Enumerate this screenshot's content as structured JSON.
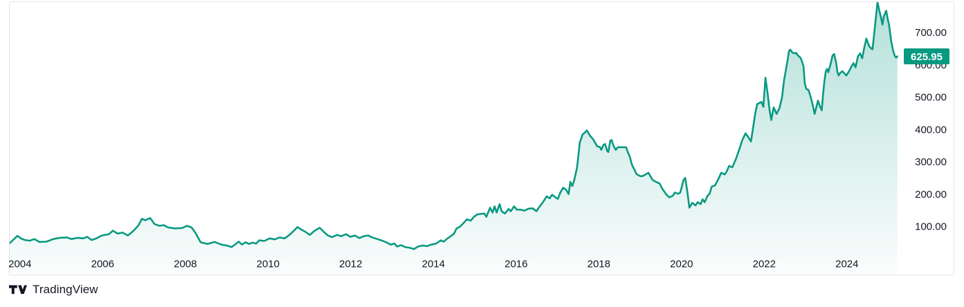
{
  "attribution": {
    "brand": "TradingView"
  },
  "chart_data": {
    "type": "area",
    "title": "",
    "xlabel": "",
    "ylabel": "",
    "grid": false,
    "legend": false,
    "last_price": 625.95,
    "last_price_label": "625.95",
    "x_axis": {
      "tick_labels": [
        "2004",
        "2006",
        "2008",
        "2010",
        "2012",
        "2014",
        "2016",
        "2018",
        "2020",
        "2022",
        "2024"
      ],
      "tick_years": [
        2004,
        2006,
        2008,
        2010,
        2012,
        2014,
        2016,
        2018,
        2020,
        2022,
        2024
      ],
      "range_years": [
        2003.75,
        2025.35
      ]
    },
    "y_axis": {
      "tick_labels": [
        "100.00",
        "200.00",
        "300.00",
        "400.00",
        "500.00",
        "600.00",
        "700.00"
      ],
      "tick_values": [
        100,
        200,
        300,
        400,
        500,
        600,
        700
      ],
      "range": [
        25,
        810
      ]
    },
    "colors": {
      "line": "#089981",
      "area_top": "rgba(8,153,129,0.30)",
      "area_bottom": "rgba(8,153,129,0.02)",
      "badge_bg": "#089981",
      "badge_text": "#ffffff",
      "axis_text": "#131722",
      "frame": "#e0e3eb",
      "background": "#ffffff",
      "logo": "#131722"
    },
    "series": [
      {
        "name": "price",
        "points": [
          [
            2003.75,
            48
          ],
          [
            2003.85,
            60
          ],
          [
            2003.94,
            71
          ],
          [
            2004.04,
            62
          ],
          [
            2004.12,
            58
          ],
          [
            2004.24,
            56
          ],
          [
            2004.35,
            61
          ],
          [
            2004.47,
            52
          ],
          [
            2004.64,
            53
          ],
          [
            2004.81,
            61
          ],
          [
            2004.97,
            65
          ],
          [
            2005.14,
            66
          ],
          [
            2005.24,
            61
          ],
          [
            2005.41,
            65
          ],
          [
            2005.53,
            63
          ],
          [
            2005.63,
            68
          ],
          [
            2005.73,
            58
          ],
          [
            2005.83,
            62
          ],
          [
            2005.98,
            72
          ],
          [
            2006.15,
            76
          ],
          [
            2006.25,
            87
          ],
          [
            2006.36,
            78
          ],
          [
            2006.48,
            81
          ],
          [
            2006.61,
            72
          ],
          [
            2006.75,
            87
          ],
          [
            2006.87,
            104
          ],
          [
            2006.95,
            124
          ],
          [
            2007.03,
            119
          ],
          [
            2007.15,
            126
          ],
          [
            2007.25,
            108
          ],
          [
            2007.37,
            102
          ],
          [
            2007.48,
            104
          ],
          [
            2007.58,
            97
          ],
          [
            2007.74,
            94
          ],
          [
            2007.92,
            95
          ],
          [
            2008.04,
            102
          ],
          [
            2008.15,
            97
          ],
          [
            2008.25,
            79
          ],
          [
            2008.37,
            51
          ],
          [
            2008.54,
            46
          ],
          [
            2008.71,
            52
          ],
          [
            2008.87,
            44
          ],
          [
            2009.04,
            40
          ],
          [
            2009.12,
            36
          ],
          [
            2009.29,
            53
          ],
          [
            2009.37,
            44
          ],
          [
            2009.46,
            51
          ],
          [
            2009.54,
            46
          ],
          [
            2009.62,
            50
          ],
          [
            2009.71,
            47
          ],
          [
            2009.79,
            57
          ],
          [
            2009.91,
            55
          ],
          [
            2010.04,
            63
          ],
          [
            2010.16,
            60
          ],
          [
            2010.28,
            66
          ],
          [
            2010.4,
            63
          ],
          [
            2010.51,
            73
          ],
          [
            2010.63,
            87
          ],
          [
            2010.71,
            98
          ],
          [
            2010.81,
            90
          ],
          [
            2010.91,
            83
          ],
          [
            2011.01,
            74
          ],
          [
            2011.13,
            87
          ],
          [
            2011.25,
            96
          ],
          [
            2011.35,
            83
          ],
          [
            2011.45,
            72
          ],
          [
            2011.55,
            67
          ],
          [
            2011.67,
            74
          ],
          [
            2011.77,
            70
          ],
          [
            2011.89,
            76
          ],
          [
            2011.99,
            68
          ],
          [
            2012.1,
            72
          ],
          [
            2012.21,
            64
          ],
          [
            2012.32,
            70
          ],
          [
            2012.42,
            72
          ],
          [
            2012.52,
            66
          ],
          [
            2012.64,
            61
          ],
          [
            2012.74,
            57
          ],
          [
            2012.86,
            51
          ],
          [
            2012.96,
            44
          ],
          [
            2013.06,
            47
          ],
          [
            2013.12,
            38
          ],
          [
            2013.22,
            42
          ],
          [
            2013.32,
            36
          ],
          [
            2013.43,
            34
          ],
          [
            2013.53,
            30
          ],
          [
            2013.63,
            38
          ],
          [
            2013.73,
            41
          ],
          [
            2013.85,
            39
          ],
          [
            2013.95,
            44
          ],
          [
            2014.06,
            47
          ],
          [
            2014.18,
            57
          ],
          [
            2014.25,
            53
          ],
          [
            2014.33,
            62
          ],
          [
            2014.41,
            69
          ],
          [
            2014.5,
            78
          ],
          [
            2014.56,
            94
          ],
          [
            2014.65,
            100
          ],
          [
            2014.73,
            111
          ],
          [
            2014.81,
            122
          ],
          [
            2014.9,
            118
          ],
          [
            2014.98,
            130
          ],
          [
            2015.06,
            137
          ],
          [
            2015.15,
            139
          ],
          [
            2015.23,
            140
          ],
          [
            2015.28,
            130
          ],
          [
            2015.37,
            158
          ],
          [
            2015.43,
            143
          ],
          [
            2015.48,
            162
          ],
          [
            2015.53,
            143
          ],
          [
            2015.6,
            169
          ],
          [
            2015.65,
            147
          ],
          [
            2015.73,
            140
          ],
          [
            2015.82,
            154
          ],
          [
            2015.87,
            147
          ],
          [
            2015.95,
            162
          ],
          [
            2016.02,
            152
          ],
          [
            2016.1,
            152
          ],
          [
            2016.2,
            149
          ],
          [
            2016.3,
            155
          ],
          [
            2016.4,
            156
          ],
          [
            2016.49,
            147
          ],
          [
            2016.57,
            162
          ],
          [
            2016.66,
            177
          ],
          [
            2016.74,
            193
          ],
          [
            2016.81,
            187
          ],
          [
            2016.87,
            198
          ],
          [
            2016.94,
            191
          ],
          [
            2017.01,
            185
          ],
          [
            2017.07,
            205
          ],
          [
            2017.14,
            220
          ],
          [
            2017.21,
            213
          ],
          [
            2017.27,
            200
          ],
          [
            2017.31,
            238
          ],
          [
            2017.36,
            225
          ],
          [
            2017.41,
            245
          ],
          [
            2017.47,
            280
          ],
          [
            2017.49,
            300
          ],
          [
            2017.54,
            360
          ],
          [
            2017.61,
            385
          ],
          [
            2017.66,
            390
          ],
          [
            2017.71,
            397
          ],
          [
            2017.79,
            380
          ],
          [
            2017.86,
            370
          ],
          [
            2017.96,
            348
          ],
          [
            2018.03,
            345
          ],
          [
            2018.06,
            337
          ],
          [
            2018.11,
            352
          ],
          [
            2018.15,
            355
          ],
          [
            2018.2,
            334
          ],
          [
            2018.23,
            330
          ],
          [
            2018.28,
            366
          ],
          [
            2018.31,
            367
          ],
          [
            2018.36,
            348
          ],
          [
            2018.41,
            337
          ],
          [
            2018.46,
            345
          ],
          [
            2018.55,
            345
          ],
          [
            2018.66,
            345
          ],
          [
            2018.71,
            327
          ],
          [
            2018.75,
            316
          ],
          [
            2018.8,
            291
          ],
          [
            2018.86,
            276
          ],
          [
            2018.91,
            262
          ],
          [
            2018.98,
            257
          ],
          [
            2019.03,
            255
          ],
          [
            2019.08,
            257
          ],
          [
            2019.2,
            266
          ],
          [
            2019.3,
            244
          ],
          [
            2019.38,
            238
          ],
          [
            2019.47,
            233
          ],
          [
            2019.53,
            218
          ],
          [
            2019.62,
            201
          ],
          [
            2019.7,
            190
          ],
          [
            2019.79,
            195
          ],
          [
            2019.84,
            205
          ],
          [
            2019.92,
            201
          ],
          [
            2019.97,
            205
          ],
          [
            2020.05,
            244
          ],
          [
            2020.09,
            250
          ],
          [
            2020.14,
            208
          ],
          [
            2020.19,
            158
          ],
          [
            2020.26,
            173
          ],
          [
            2020.34,
            165
          ],
          [
            2020.39,
            175
          ],
          [
            2020.46,
            169
          ],
          [
            2020.51,
            184
          ],
          [
            2020.56,
            175
          ],
          [
            2020.63,
            195
          ],
          [
            2020.68,
            201
          ],
          [
            2020.73,
            223
          ],
          [
            2020.81,
            227
          ],
          [
            2020.88,
            244
          ],
          [
            2020.96,
            266
          ],
          [
            2021.05,
            261
          ],
          [
            2021.1,
            272
          ],
          [
            2021.15,
            287
          ],
          [
            2021.23,
            283
          ],
          [
            2021.32,
            310
          ],
          [
            2021.4,
            340
          ],
          [
            2021.47,
            367
          ],
          [
            2021.55,
            388
          ],
          [
            2021.62,
            375
          ],
          [
            2021.68,
            363
          ],
          [
            2021.73,
            405
          ],
          [
            2021.78,
            448
          ],
          [
            2021.83,
            478
          ],
          [
            2021.93,
            485
          ],
          [
            2021.98,
            470
          ],
          [
            2022.03,
            560
          ],
          [
            2022.08,
            513
          ],
          [
            2022.13,
            459
          ],
          [
            2022.17,
            429
          ],
          [
            2022.23,
            468
          ],
          [
            2022.3,
            448
          ],
          [
            2022.37,
            466
          ],
          [
            2022.43,
            499
          ],
          [
            2022.48,
            552
          ],
          [
            2022.55,
            603
          ],
          [
            2022.6,
            642
          ],
          [
            2022.63,
            647
          ],
          [
            2022.68,
            638
          ],
          [
            2022.73,
            635
          ],
          [
            2022.77,
            637
          ],
          [
            2022.82,
            628
          ],
          [
            2022.87,
            623
          ],
          [
            2022.9,
            615
          ],
          [
            2022.95,
            595
          ],
          [
            2022.98,
            542
          ],
          [
            2023.02,
            525
          ],
          [
            2023.07,
            522
          ],
          [
            2023.1,
            511
          ],
          [
            2023.15,
            488
          ],
          [
            2023.19,
            466
          ],
          [
            2023.22,
            448
          ],
          [
            2023.27,
            474
          ],
          [
            2023.3,
            489
          ],
          [
            2023.34,
            474
          ],
          [
            2023.39,
            459
          ],
          [
            2023.42,
            502
          ],
          [
            2023.45,
            542
          ],
          [
            2023.49,
            580
          ],
          [
            2023.52,
            587
          ],
          [
            2023.55,
            577
          ],
          [
            2023.59,
            595
          ],
          [
            2023.62,
            610
          ],
          [
            2023.65,
            628
          ],
          [
            2023.69,
            633
          ],
          [
            2023.74,
            606
          ],
          [
            2023.77,
            577
          ],
          [
            2023.8,
            567
          ],
          [
            2023.84,
            575
          ],
          [
            2023.89,
            580
          ],
          [
            2023.94,
            573
          ],
          [
            2023.99,
            567
          ],
          [
            2024.06,
            582
          ],
          [
            2024.11,
            595
          ],
          [
            2024.16,
            605
          ],
          [
            2024.21,
            592
          ],
          [
            2024.27,
            627
          ],
          [
            2024.32,
            635
          ],
          [
            2024.37,
            620
          ],
          [
            2024.42,
            653
          ],
          [
            2024.47,
            681
          ],
          [
            2024.54,
            657
          ],
          [
            2024.59,
            650
          ],
          [
            2024.62,
            648
          ],
          [
            2024.66,
            696
          ],
          [
            2024.69,
            732
          ],
          [
            2024.74,
            793
          ],
          [
            2024.79,
            764
          ],
          [
            2024.82,
            749
          ],
          [
            2024.86,
            724
          ],
          [
            2024.89,
            749
          ],
          [
            2024.95,
            767
          ],
          [
            2024.99,
            739
          ],
          [
            2025.02,
            724
          ],
          [
            2025.07,
            674
          ],
          [
            2025.12,
            642
          ],
          [
            2025.16,
            627
          ],
          [
            2025.19,
            622
          ],
          [
            2025.22,
            625.95
          ]
        ]
      }
    ]
  }
}
